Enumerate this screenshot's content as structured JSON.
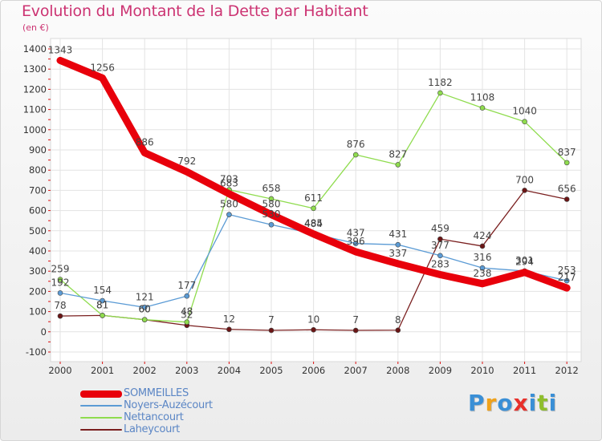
{
  "title": "Evolution du Montant de la Dette par Habitant",
  "unit_label": "(en €)",
  "logo": {
    "text": "Proxiti",
    "letters": [
      "P",
      "r",
      "o",
      "x",
      "i",
      "t",
      "i"
    ],
    "colors": [
      "#3a8fd6",
      "#f0a21a",
      "#3a8fd6",
      "#e8302a",
      "#3a8fd6",
      "#8fbe2d",
      "#3a8fd6"
    ]
  },
  "chart_data": {
    "type": "line",
    "title": "Evolution du Montant de la Dette par Habitant",
    "ylabel": "(en €)",
    "xlabel": "",
    "x": [
      "2000",
      "2001",
      "2002",
      "2003",
      "2004",
      "2005",
      "2006",
      "2007",
      "2008",
      "2009",
      "2010",
      "2011",
      "2012"
    ],
    "ylim": [
      -100,
      1400
    ],
    "yticks": [
      -100,
      0,
      100,
      200,
      300,
      400,
      500,
      600,
      700,
      800,
      900,
      1000,
      1100,
      1200,
      1300,
      1400
    ],
    "grid": true,
    "legend_position": "bottom-left",
    "series": [
      {
        "name": "SOMMEILLES",
        "color": "#e8000b",
        "values": [
          1343,
          1256,
          886,
          792,
          683,
          580,
          484,
          396,
          337,
          283,
          238,
          294,
          217
        ],
        "labels": [
          "1343",
          "1256",
          "886",
          "792",
          "683",
          "580",
          "484",
          "396",
          "337",
          "283",
          "238",
          "294",
          "217"
        ]
      },
      {
        "name": "Noyers-Auzécourt",
        "color": "#5b9bd5",
        "values": [
          192,
          154,
          121,
          177,
          580,
          530,
          485,
          437,
          431,
          377,
          316,
          301,
          253
        ],
        "labels": [
          "192",
          "154",
          "121",
          "177",
          "580",
          "530",
          "485",
          "437",
          "431",
          "377",
          "316",
          "301",
          "253"
        ]
      },
      {
        "name": "Nettancourt",
        "color": "#8fdc4e",
        "values": [
          259,
          81,
          60,
          48,
          703,
          658,
          611,
          876,
          827,
          1182,
          1108,
          1040,
          837
        ],
        "labels": [
          "259",
          "81",
          "60",
          "48",
          "703",
          "658",
          "611",
          "876",
          "827",
          "1182",
          "1108",
          "1040",
          "837"
        ]
      },
      {
        "name": "Laheycourt",
        "color": "#7a1f1f",
        "values": [
          78,
          81,
          60,
          32,
          12,
          7,
          10,
          7,
          8,
          459,
          424,
          700,
          656
        ],
        "labels": [
          "78",
          "81",
          "60",
          "32",
          "12",
          "7",
          "10",
          "7",
          "8",
          "459",
          "424",
          "700",
          "656"
        ]
      }
    ]
  }
}
